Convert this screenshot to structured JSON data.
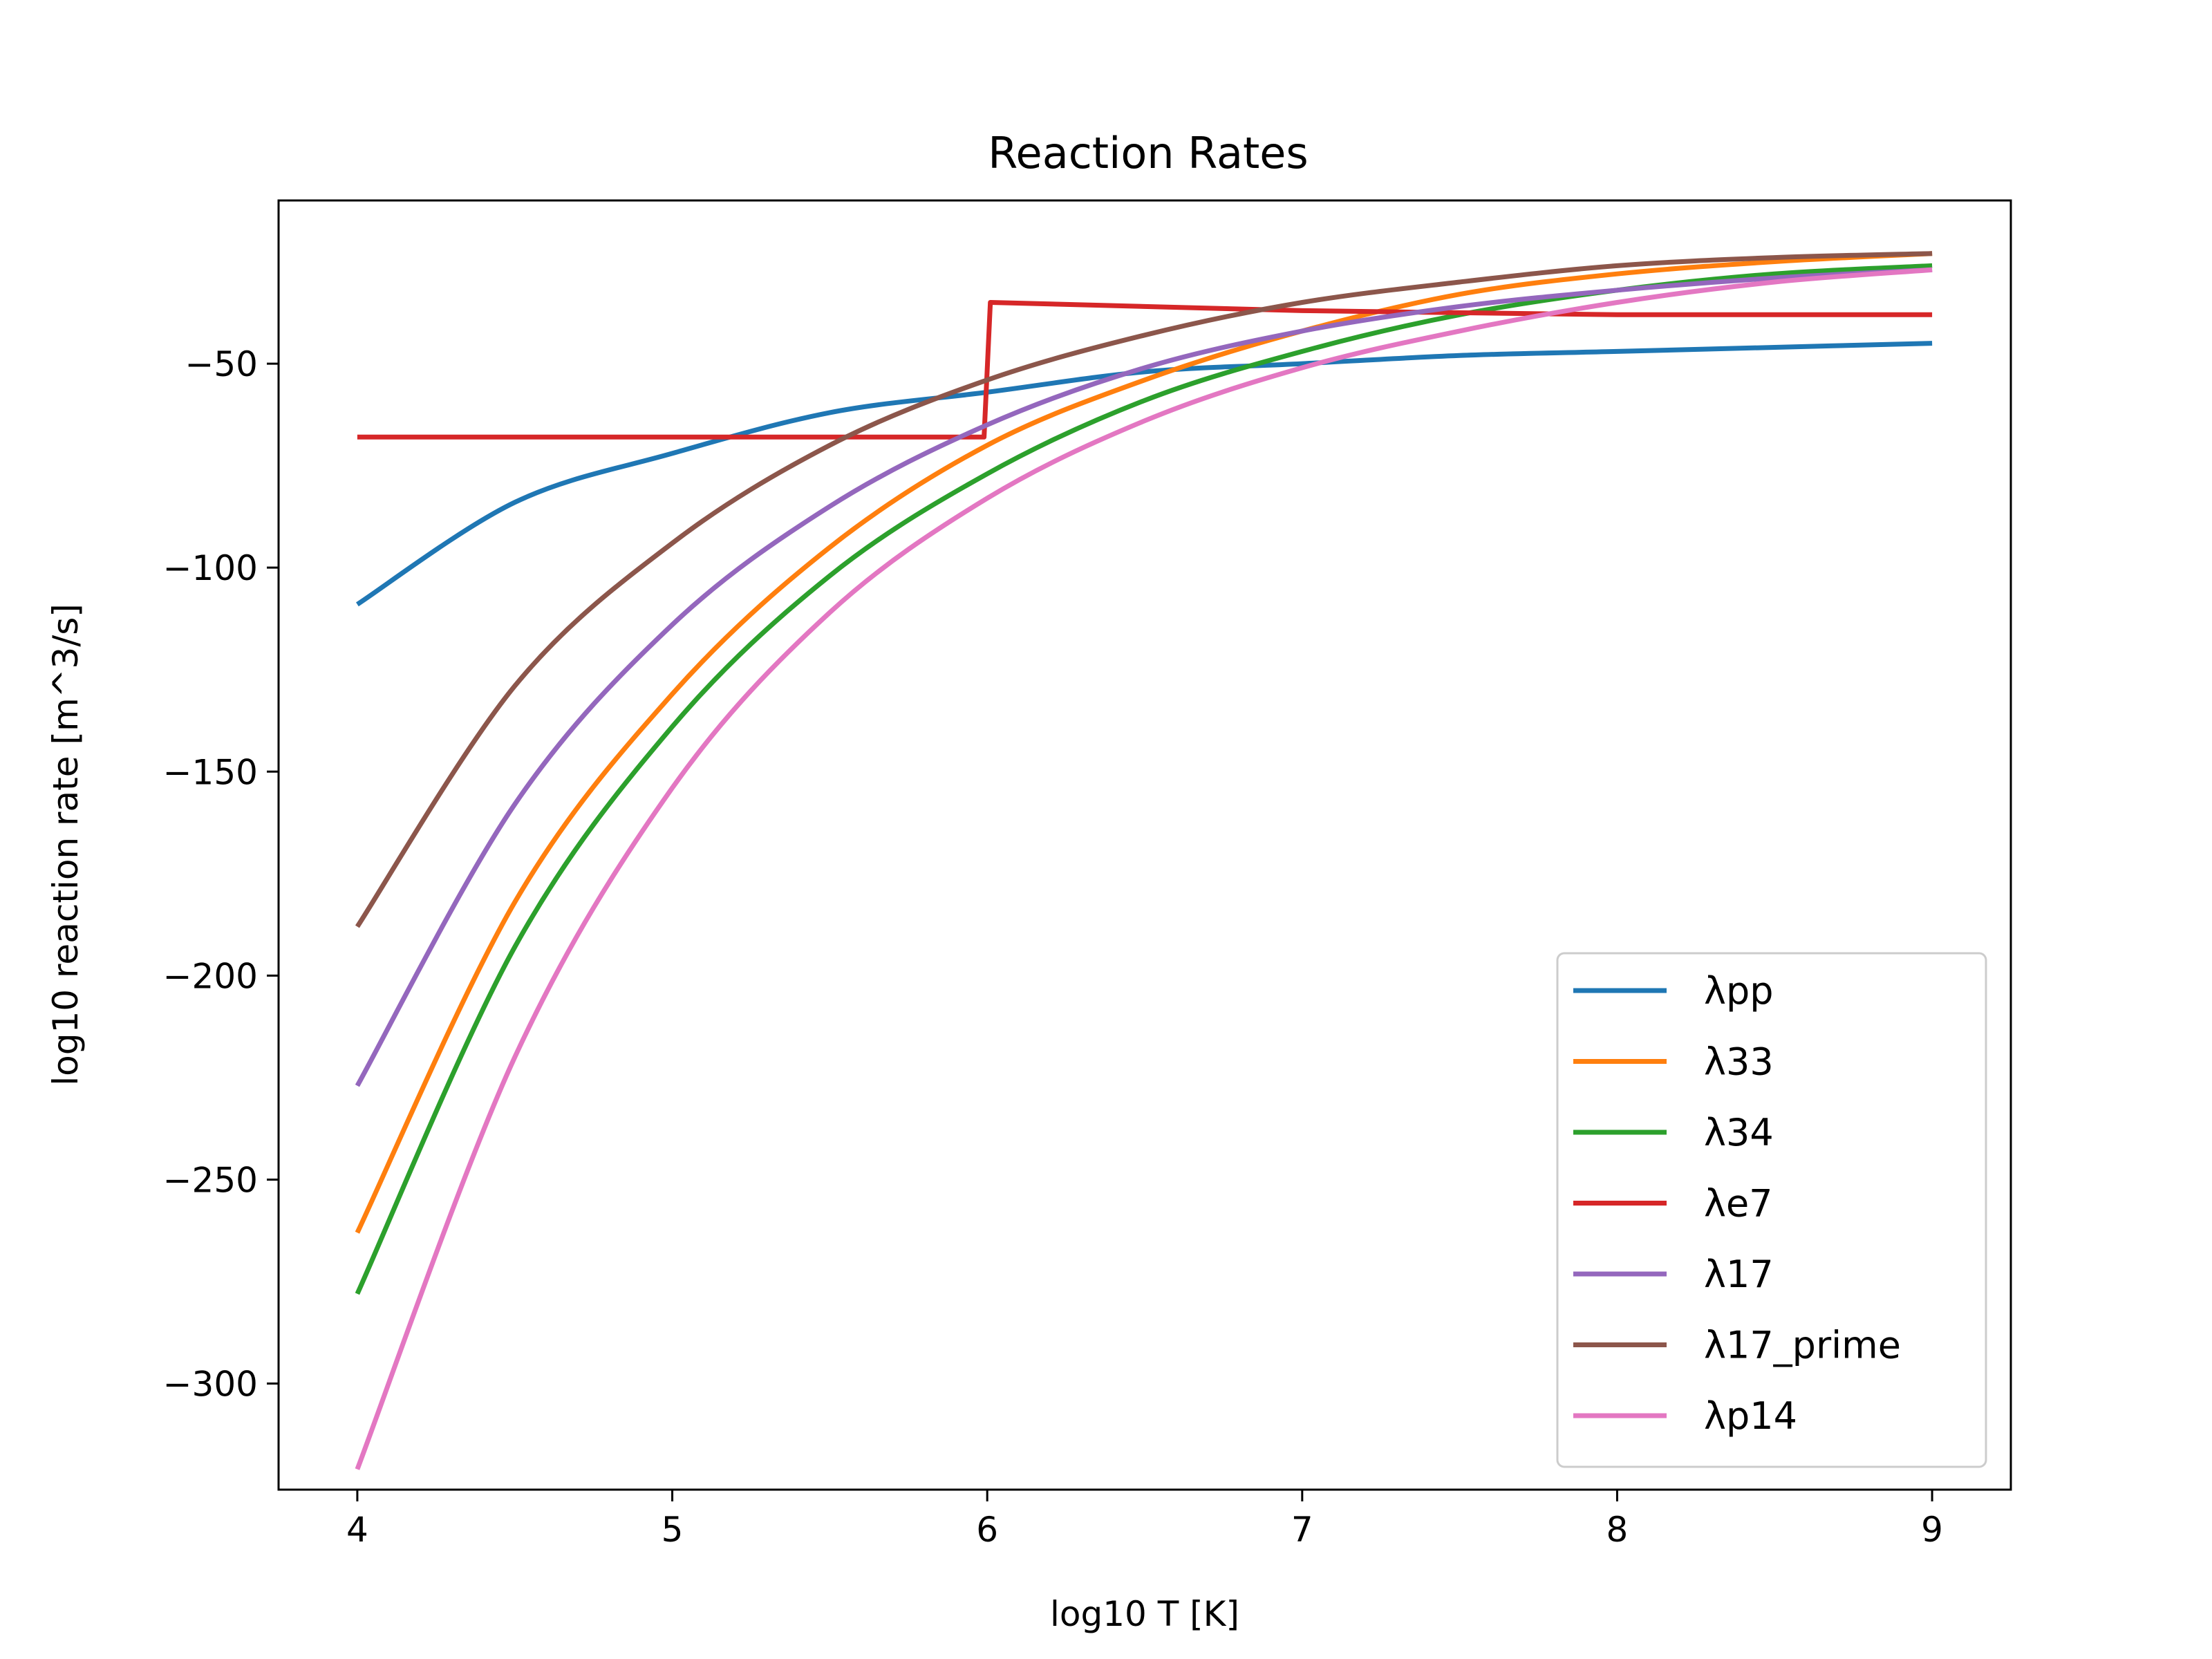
{
  "chart_data": {
    "type": "line",
    "title": "Reaction Rates",
    "xlabel": "log10 T [K]",
    "ylabel": "log10 reaction rate [m^3/s]",
    "xlim": [
      3.75,
      9.25
    ],
    "ylim": [
      -326,
      -10
    ],
    "xticks": [
      4,
      5,
      6,
      7,
      8,
      9
    ],
    "xtick_labels": [
      "4",
      "5",
      "6",
      "7",
      "8",
      "9"
    ],
    "yticks": [
      -50,
      -100,
      -150,
      -200,
      -250,
      -300
    ],
    "ytick_labels": [
      "−50",
      "−100",
      "−150",
      "−200",
      "−250",
      "−300"
    ],
    "grid": false,
    "legend_position": "lower-right",
    "x": [
      4.0,
      4.5,
      5.0,
      5.5,
      6.0,
      6.5,
      7.0,
      7.5,
      8.0,
      8.5,
      9.0
    ],
    "series": [
      {
        "name": "λpp",
        "color": "#1f77b4",
        "x": [
          4.0,
          4.5,
          5.0,
          5.5,
          6.0,
          6.5,
          7.0,
          7.5,
          8.0,
          8.5,
          9.0
        ],
        "values": [
          -109,
          -84,
          -72,
          -62,
          -57,
          -52,
          -50,
          -48,
          -47,
          -46,
          -45
        ]
      },
      {
        "name": "λ33",
        "color": "#ff7f0e",
        "x": [
          4.0,
          4.5,
          5.0,
          5.5,
          6.0,
          6.5,
          7.0,
          7.5,
          8.0,
          8.5,
          9.0
        ],
        "values": [
          -263,
          -182,
          -131,
          -95,
          -70,
          -54,
          -42,
          -33,
          -28,
          -25,
          -23
        ]
      },
      {
        "name": "λ34",
        "color": "#2ca02c",
        "x": [
          4.0,
          4.5,
          5.0,
          5.5,
          6.0,
          6.5,
          7.0,
          7.5,
          8.0,
          8.5,
          9.0
        ],
        "values": [
          -278,
          -193,
          -139,
          -102,
          -77,
          -59,
          -47,
          -38,
          -32,
          -28,
          -26
        ]
      },
      {
        "name": "λe7",
        "color": "#d62728",
        "x": [
          4.0,
          5.0,
          5.99,
          6.01,
          7.0,
          8.0,
          9.0
        ],
        "values": [
          -68,
          -68,
          -68,
          -35,
          -37,
          -38,
          -38
        ]
      },
      {
        "name": "λ17",
        "color": "#9467bd",
        "x": [
          4.0,
          4.5,
          5.0,
          5.5,
          6.0,
          6.5,
          7.0,
          7.5,
          8.0,
          8.5,
          9.0
        ],
        "values": [
          -227,
          -158,
          -114,
          -85,
          -65,
          -51,
          -42,
          -36,
          -32,
          -29,
          -27
        ]
      },
      {
        "name": "λ17_prime",
        "color": "#8c564b",
        "x": [
          4.0,
          4.5,
          5.0,
          5.5,
          6.0,
          6.5,
          7.0,
          7.5,
          8.0,
          8.5,
          9.0
        ],
        "values": [
          -188,
          -129,
          -94,
          -70,
          -54,
          -43,
          -35,
          -30,
          -26,
          -24,
          -23
        ]
      },
      {
        "name": "λp14",
        "color": "#e377c2",
        "x": [
          4.0,
          4.5,
          5.0,
          5.5,
          6.0,
          6.5,
          7.0,
          7.5,
          8.0,
          8.5,
          9.0
        ],
        "values": [
          -321,
          -220,
          -154,
          -111,
          -83,
          -64,
          -51,
          -42,
          -35,
          -30,
          -27
        ]
      }
    ]
  }
}
